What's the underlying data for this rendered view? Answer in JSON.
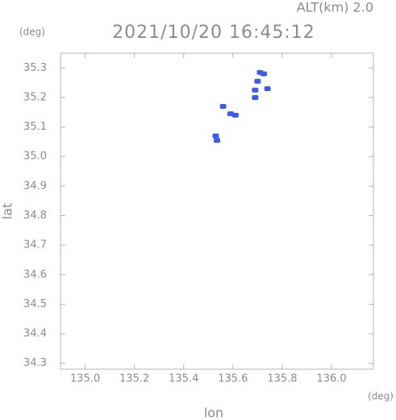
{
  "chart_data": {
    "type": "scatter",
    "title": "2021/10/20 16:45:12",
    "annotation": "ALT(km)  2.0",
    "xlabel": "lon",
    "ylabel": "lat",
    "x_unit": "(deg)",
    "y_unit": "(deg)",
    "xlim": [
      134.9,
      136.17
    ],
    "ylim": [
      34.28,
      35.35
    ],
    "xticks": [
      {
        "value": 135.0,
        "label": "135.0"
      },
      135.2,
      135.4,
      135.6,
      135.8,
      {
        "value": 136.0,
        "label": "136.0"
      }
    ],
    "yticks": [
      34.3,
      34.4,
      34.5,
      34.6,
      34.7,
      34.8,
      34.9,
      {
        "value": 35.0,
        "label": "35.0"
      },
      35.1,
      35.2,
      35.3
    ],
    "color": "#3a5cf0",
    "x": [
      135.53,
      135.535,
      135.56,
      135.59,
      135.61,
      135.69,
      135.69,
      135.7,
      135.71,
      135.725,
      135.74
    ],
    "y": [
      35.07,
      35.055,
      35.17,
      35.145,
      35.14,
      35.2,
      35.225,
      35.255,
      35.285,
      35.28,
      35.23
    ]
  }
}
